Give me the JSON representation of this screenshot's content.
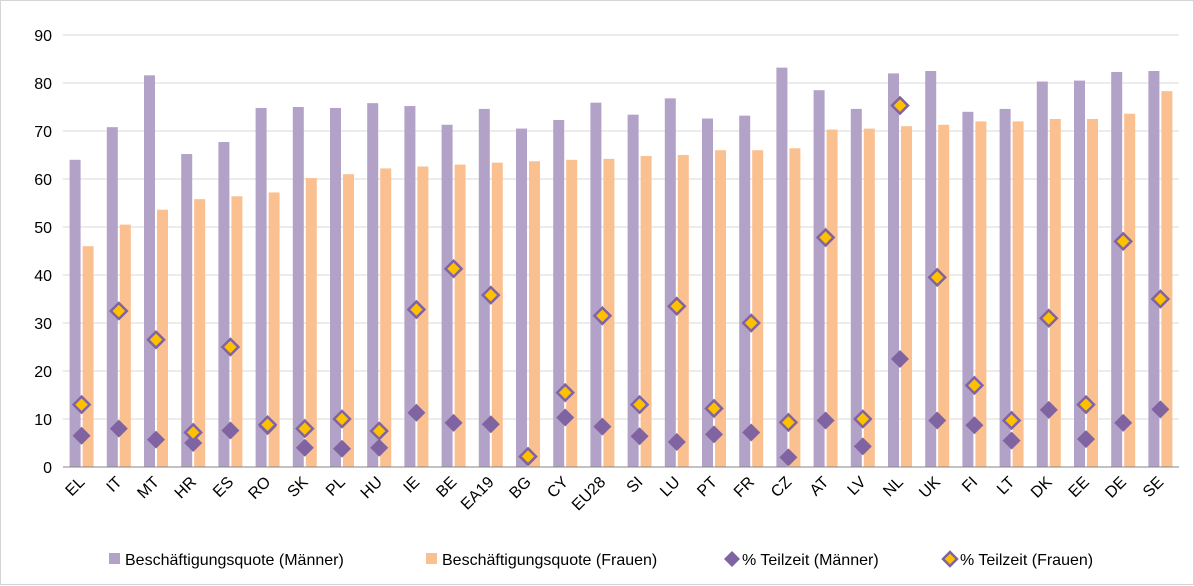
{
  "chart_data": {
    "type": "bar",
    "title": "",
    "xlabel": "",
    "ylabel": "",
    "ylim": [
      0,
      90
    ],
    "yticks": [
      0,
      10,
      20,
      30,
      40,
      50,
      60,
      70,
      80,
      90
    ],
    "grid": "horizontal",
    "legend_position": "bottom",
    "categories": [
      "EL",
      "IT",
      "MT",
      "HR",
      "ES",
      "RO",
      "SK",
      "PL",
      "HU",
      "IE",
      "BE",
      "EA19",
      "BG",
      "CY",
      "EU28",
      "SI",
      "LU",
      "PT",
      "FR",
      "CZ",
      "AT",
      "LV",
      "NL",
      "UK",
      "FI",
      "LT",
      "DK",
      "EE",
      "DE",
      "SE"
    ],
    "series": [
      {
        "name": "Beschäftigungsquote (Männer)",
        "kind": "bar",
        "color": "#b3a2c7",
        "values": [
          64.0,
          70.8,
          81.6,
          65.2,
          67.7,
          74.8,
          75.0,
          74.8,
          75.8,
          75.2,
          71.3,
          74.6,
          70.5,
          72.3,
          75.9,
          73.4,
          76.8,
          72.6,
          73.2,
          83.2,
          78.5,
          74.6,
          82.0,
          82.5,
          74.0,
          74.6,
          80.3,
          80.5,
          82.3,
          82.5
        ]
      },
      {
        "name": "Beschäftigungsquote (Frauen)",
        "kind": "bar",
        "color": "#fac090",
        "values": [
          46.0,
          50.5,
          53.6,
          55.8,
          56.4,
          57.2,
          60.2,
          61.0,
          62.2,
          62.6,
          63.0,
          63.4,
          63.7,
          64.0,
          64.2,
          64.8,
          65.0,
          66.0,
          66.0,
          66.4,
          70.3,
          70.5,
          71.0,
          71.3,
          72.0,
          72.0,
          72.5,
          72.5,
          73.6,
          78.3
        ]
      },
      {
        "name": "% Teilzeit (Männer)",
        "kind": "marker",
        "color": "#8064a2",
        "values": [
          6.5,
          8.0,
          5.7,
          5.0,
          7.6,
          8.5,
          4.0,
          3.8,
          4.0,
          11.3,
          9.2,
          8.9,
          2.0,
          10.3,
          8.4,
          6.4,
          5.2,
          6.8,
          7.2,
          2.0,
          9.7,
          4.3,
          22.5,
          9.7,
          8.7,
          5.5,
          11.9,
          5.8,
          9.2,
          12.0
        ]
      },
      {
        "name": "% Teilzeit (Frauen)",
        "kind": "marker",
        "color": "#ffc000",
        "edge": "#8064a2",
        "values": [
          13.0,
          32.5,
          26.5,
          7.2,
          25.0,
          8.8,
          8.0,
          10.0,
          7.5,
          32.8,
          41.3,
          35.8,
          2.2,
          15.5,
          31.5,
          13.0,
          33.5,
          12.2,
          30.0,
          9.3,
          47.8,
          10.0,
          75.3,
          39.5,
          17.0,
          9.7,
          31.0,
          13.0,
          47.0,
          35.0
        ]
      }
    ]
  }
}
